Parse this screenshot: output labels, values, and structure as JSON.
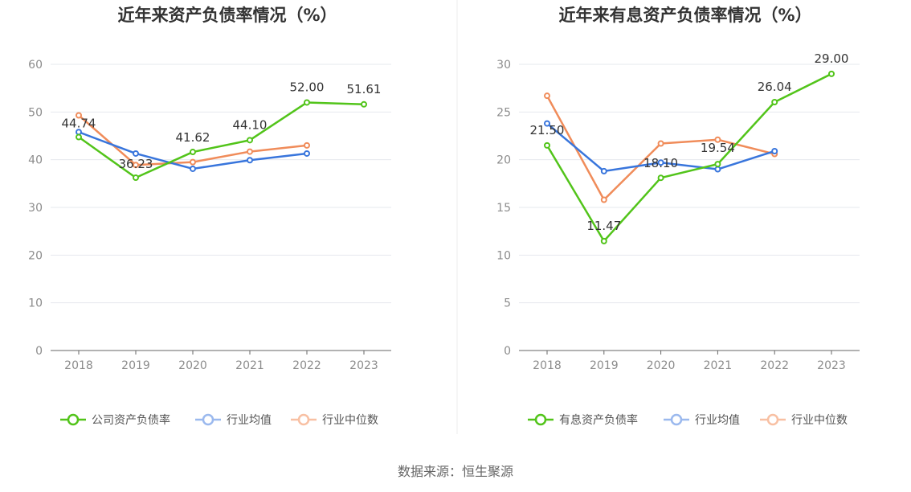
{
  "source": "数据来源：恒生聚源",
  "chart_data": [
    {
      "type": "line",
      "title": "近年来资产负债率情况（%）",
      "categories": [
        "2018",
        "2019",
        "2020",
        "2021",
        "2022",
        "2023"
      ],
      "ylim": [
        0,
        60
      ],
      "yticks": [
        0,
        10,
        20,
        30,
        40,
        50,
        60
      ],
      "grid": true,
      "legend_position": "bottom",
      "series": [
        {
          "name": "公司资产负债率",
          "color": "#52c41a",
          "values": [
            44.74,
            36.23,
            41.62,
            44.1,
            52.0,
            51.61
          ],
          "labels": [
            "44.74",
            "36.23",
            "41.62",
            "44.10",
            "52.00",
            "51.61"
          ]
        },
        {
          "name": "行业均值",
          "color": "#3875dc",
          "values": [
            45.8,
            41.3,
            38.1,
            39.9,
            41.3,
            null
          ]
        },
        {
          "name": "行业中位数",
          "color": "#f08c5a",
          "values": [
            49.3,
            38.9,
            39.5,
            41.7,
            43.0,
            null
          ]
        }
      ]
    },
    {
      "type": "line",
      "title": "近年来有息资产负债率情况（%）",
      "categories": [
        "2018",
        "2019",
        "2020",
        "2021",
        "2022",
        "2023"
      ],
      "ylim": [
        0,
        30
      ],
      "yticks": [
        0,
        5,
        10,
        15,
        20,
        25,
        30
      ],
      "grid": true,
      "legend_position": "bottom",
      "series": [
        {
          "name": "有息资产负债率",
          "color": "#52c41a",
          "values": [
            21.5,
            11.47,
            18.1,
            19.54,
            26.04,
            29.0
          ],
          "labels": [
            "21.50",
            "11.47",
            "18.10",
            "19.54",
            "26.04",
            "29.00"
          ]
        },
        {
          "name": "行业均值",
          "color": "#3875dc",
          "values": [
            23.8,
            18.8,
            19.7,
            19.0,
            20.9,
            null
          ]
        },
        {
          "name": "行业中位数",
          "color": "#f08c5a",
          "values": [
            26.7,
            15.8,
            21.7,
            22.1,
            20.6,
            null
          ]
        }
      ]
    }
  ]
}
